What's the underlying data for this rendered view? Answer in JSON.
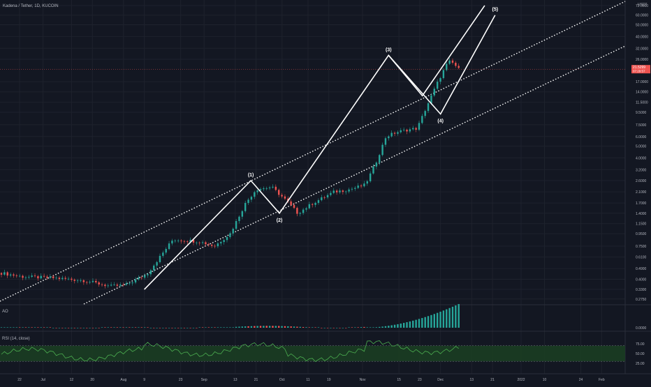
{
  "colors": {
    "background": "#131722",
    "grid": "#1e222d",
    "text": "#b2b5be",
    "up": "#26a69a",
    "down": "#ef5350",
    "wave": "#ffffff",
    "channel": "#ffffff",
    "rsi_line": "#4caf50",
    "rsi_band": "#1b3d22",
    "last_price_bg": "#ef5350"
  },
  "header": {
    "symbol": "Kadena / Tether, 1D, KUCOIN"
  },
  "price_axis": {
    "currency": "USDT",
    "labels": [
      "72.0000",
      "60.0000",
      "50.0000",
      "40.0000",
      "32.0000",
      "26.0000",
      "17.0000",
      "14.0000",
      "11.5000",
      "9.5000",
      "7.5000",
      "6.0000",
      "5.0000",
      "4.0000",
      "3.2000",
      "2.6000",
      "2.1000",
      "1.7000",
      "1.4000",
      "1.1500",
      "0.9500",
      "0.7500",
      "0.6100",
      "0.4900",
      "0.4000",
      "0.3300",
      "0.2750"
    ],
    "last_price": "21.5299",
    "countdown": "07:29:57",
    "ao_labels": [
      "0.0000"
    ],
    "rsi_labels": [
      "75.00",
      "50.00",
      "25.00"
    ]
  },
  "time_axis": {
    "labels": [
      "22",
      "Jul",
      "12",
      "20",
      "Aug",
      "9",
      "23",
      "Sep",
      "13",
      "21",
      "Oct",
      "11",
      "19",
      "Nov",
      "15",
      "23",
      "Dec",
      "13",
      "21",
      "2022",
      "10",
      "24",
      "Feb"
    ]
  },
  "panels": {
    "ao_title": "AO",
    "rsi_title": "RSI (14, close)"
  },
  "chart_data": {
    "type": "candlestick",
    "title": "Kadena / Tether, 1D, KUCOIN",
    "y_scale": "log",
    "ylim": [
      0.25,
      80
    ],
    "x_range": [
      "2021-06-15",
      "2022-02-14"
    ],
    "candles_description": "Daily KDA/USDT candles from mid June 2021 to mid November 2021, trending from about 0.45 to about 26 (peak), last 21.53",
    "waves": [
      {
        "label": "(1)",
        "date": "2021-09-19",
        "price": 2.6
      },
      {
        "label": "(2)",
        "date": "2021-09-30",
        "price": 1.4
      },
      {
        "label": "(3)",
        "date": "2021-11-11",
        "price": 28
      },
      {
        "label": "(4)",
        "date": "2021-12-01",
        "price": 9.2
      },
      {
        "label": "(5)",
        "date": "2021-12-22",
        "price": 60
      }
    ],
    "series_last": 21.5299,
    "rsi_levels": [
      70,
      30
    ],
    "grid": true
  }
}
